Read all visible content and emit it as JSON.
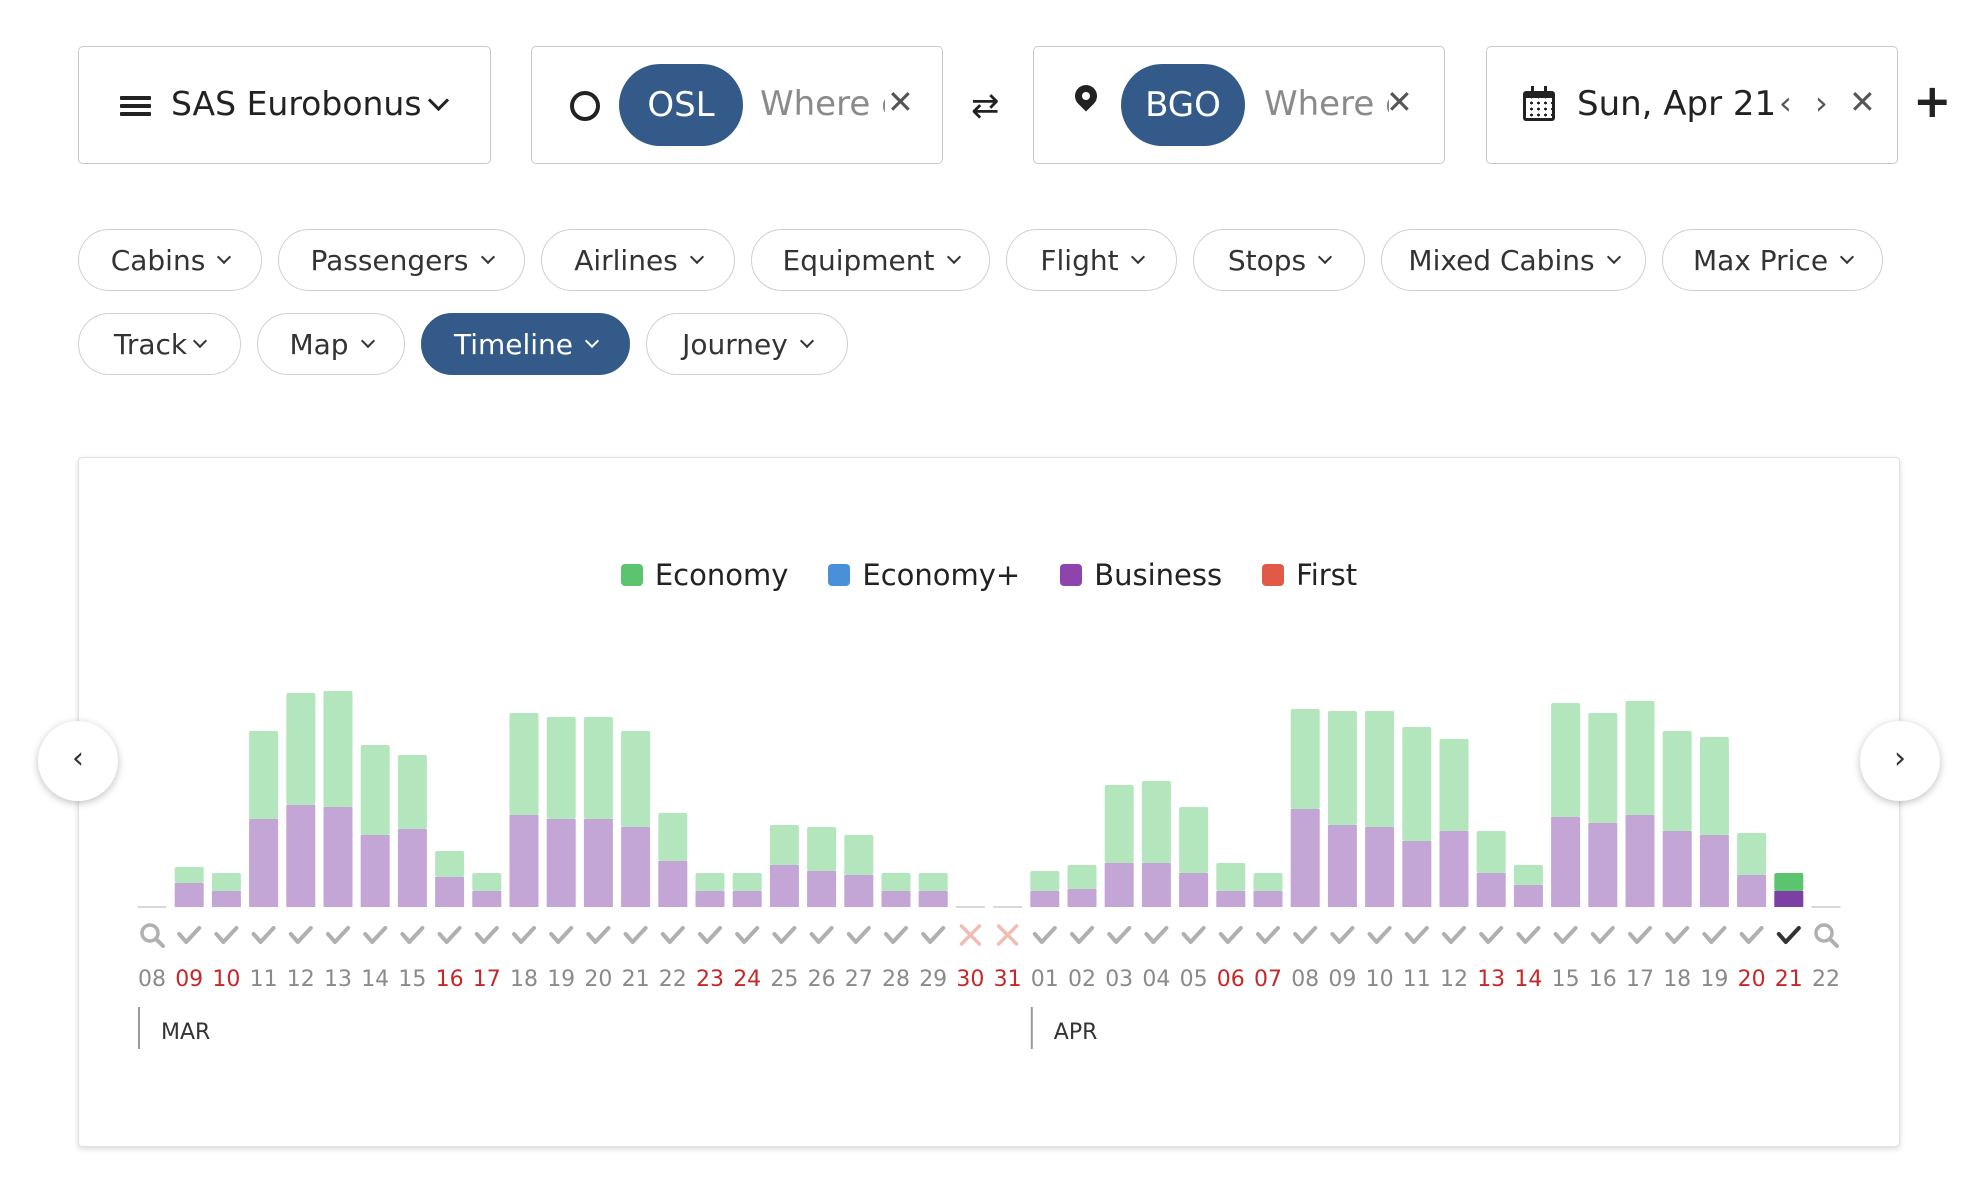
{
  "program": {
    "label": "SAS Eurobonus"
  },
  "origin": {
    "code": "OSL",
    "placeholder": "Where else?"
  },
  "destination": {
    "code": "BGO",
    "placeholder": "Where else?"
  },
  "date": {
    "label": "Sun, Apr 21"
  },
  "icons": {
    "close": "✕",
    "swap": "⇄",
    "prev": "‹",
    "next": "›",
    "plus": "+"
  },
  "filters": [
    "Cabins",
    "Passengers",
    "Airlines",
    "Equipment",
    "Flight",
    "Stops",
    "Mixed Cabins",
    "Max Price"
  ],
  "views": [
    {
      "label": "Track",
      "active": false
    },
    {
      "label": "Map",
      "active": false
    },
    {
      "label": "Timeline",
      "active": true
    },
    {
      "label": "Journey",
      "active": false
    }
  ],
  "legend": [
    {
      "label": "Economy",
      "color": "#5cc46e"
    },
    {
      "label": "Economy+",
      "color": "#4a90d9"
    },
    {
      "label": "Business",
      "color": "#8e44ad"
    },
    {
      "label": "First",
      "color": "#e05a47"
    }
  ],
  "chart_data": {
    "type": "bar",
    "stacked": true,
    "title": "",
    "month_labels": [
      {
        "label": "MAR",
        "start_index": 0
      },
      {
        "label": "APR",
        "start_index": 24
      }
    ],
    "categories": [
      "08",
      "09",
      "10",
      "11",
      "12",
      "13",
      "14",
      "15",
      "16",
      "17",
      "18",
      "19",
      "20",
      "21",
      "22",
      "23",
      "24",
      "25",
      "26",
      "27",
      "28",
      "29",
      "30",
      "31",
      "01",
      "02",
      "03",
      "04",
      "05",
      "06",
      "07",
      "08",
      "09",
      "10",
      "11",
      "12",
      "13",
      "14",
      "15",
      "16",
      "17",
      "18",
      "19",
      "20",
      "21",
      "22"
    ],
    "weekend": [
      false,
      true,
      true,
      false,
      false,
      false,
      false,
      false,
      true,
      true,
      false,
      false,
      false,
      false,
      false,
      true,
      true,
      false,
      false,
      false,
      false,
      false,
      true,
      true,
      false,
      false,
      false,
      false,
      false,
      true,
      true,
      false,
      false,
      false,
      false,
      false,
      true,
      true,
      false,
      false,
      false,
      false,
      false,
      true,
      true,
      false
    ],
    "status": [
      "search",
      "check",
      "check",
      "check",
      "check",
      "check",
      "check",
      "check",
      "check",
      "check",
      "check",
      "check",
      "check",
      "check",
      "check",
      "check",
      "check",
      "check",
      "check",
      "check",
      "check",
      "check",
      "none",
      "none",
      "check",
      "check",
      "check",
      "check",
      "check",
      "check",
      "check",
      "check",
      "check",
      "check",
      "check",
      "check",
      "check",
      "check",
      "check",
      "check",
      "check",
      "check",
      "check",
      "check",
      "selected",
      "search"
    ],
    "selected_index": 44,
    "series": [
      {
        "name": "Business",
        "values": [
          0,
          12,
          8,
          44,
          51,
          50,
          36,
          39,
          15,
          8,
          46,
          44,
          44,
          40,
          23,
          8,
          8,
          21,
          18,
          16,
          8,
          8,
          0,
          0,
          8,
          9,
          22,
          22,
          17,
          8,
          8,
          49,
          41,
          40,
          33,
          38,
          17,
          11,
          45,
          42,
          46,
          38,
          36,
          16,
          8,
          0
        ]
      },
      {
        "name": "Economy",
        "values": [
          0,
          8,
          9,
          44,
          56,
          58,
          45,
          37,
          13,
          9,
          51,
          51,
          51,
          48,
          24,
          9,
          9,
          20,
          22,
          20,
          9,
          9,
          0,
          0,
          10,
          12,
          39,
          41,
          33,
          14,
          9,
          50,
          57,
          58,
          57,
          46,
          21,
          10,
          57,
          55,
          57,
          50,
          49,
          21,
          9,
          0
        ]
      }
    ],
    "ylim": [
      0,
      110
    ]
  }
}
